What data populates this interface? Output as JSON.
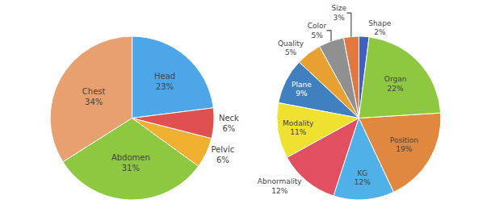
{
  "chart_data": [
    {
      "type": "pie",
      "categories": [
        "Head",
        "Chest",
        "Abdomen",
        "Pelvic",
        "Neck"
      ],
      "values": [
        23,
        34,
        31,
        6,
        6
      ],
      "value_labels": [
        "23%",
        "34%",
        "31%",
        "6%",
        "6%"
      ],
      "colors": [
        "#4da6e8",
        "#e8a070",
        "#8dc840",
        "#f0b030",
        "#e05050"
      ],
      "data_labels": true
    },
    {
      "type": "pie",
      "categories": [
        "Shape",
        "Size",
        "Color",
        "Quality",
        "Plane",
        "Modality",
        "Abnormality",
        "KG",
        "Position",
        "Organ"
      ],
      "values": [
        2,
        3,
        5,
        5,
        9,
        11,
        12,
        12,
        19,
        22
      ],
      "value_labels": [
        "2%",
        "3%",
        "5%",
        "5%",
        "9%",
        "11%",
        "12%",
        "12%",
        "19%",
        "22%"
      ],
      "colors": [
        "#4060c0",
        "#e07840",
        "#909090",
        "#e8a030",
        "#4080c0",
        "#f0e030",
        "#e05060",
        "#50b0e8",
        "#e08840",
        "#8dc840"
      ],
      "data_labels": true
    }
  ]
}
